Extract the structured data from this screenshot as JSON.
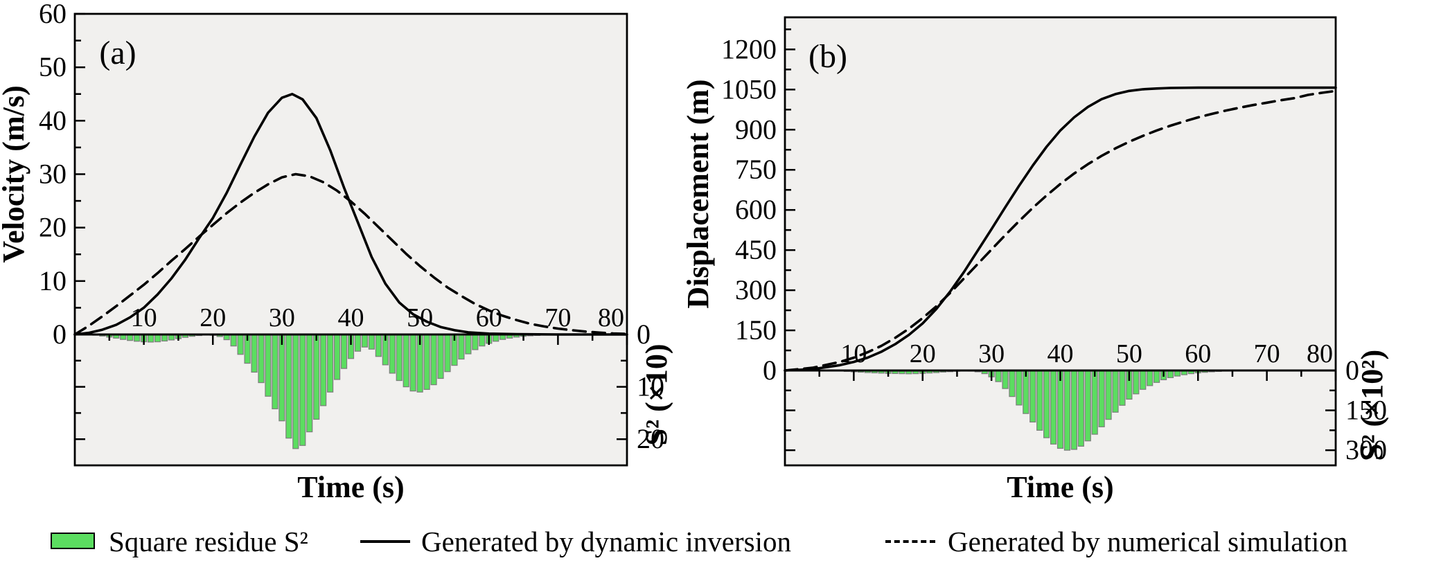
{
  "figure": {
    "plot_bg": "#f1f0ee",
    "bar_fill": "#5bdd60",
    "bar_stroke": "#7d7d7d",
    "line_color": "#000000"
  },
  "legend": {
    "items": [
      {
        "label": "Square residue S²",
        "swatch": "bar"
      },
      {
        "label": "Generated  by dynamic inversion",
        "swatch": "solid"
      },
      {
        "label": "Generated  by numerical simulation",
        "swatch": "dashed"
      }
    ]
  },
  "chart_data": [
    {
      "type": "line+bar",
      "panel_label": "(a)",
      "x_axis": {
        "label": "Time (s)",
        "lim": [
          0,
          80
        ],
        "ticks": [
          10,
          20,
          30,
          40,
          50,
          60,
          70,
          80
        ],
        "minor_step": 5
      },
      "left_axis": {
        "label": "Velocity (m/s)",
        "lim": [
          0,
          60
        ],
        "ticks": [
          0,
          10,
          20,
          30,
          40,
          50,
          60
        ],
        "minor_step": 5
      },
      "right_axis": {
        "label": "S² (×10)",
        "lim": [
          0,
          25
        ],
        "ticks": [
          0,
          10,
          20
        ],
        "minor_step": 5,
        "direction": "down"
      },
      "series": [
        {
          "name": "Generated by dynamic inversion",
          "style": "solid",
          "points": [
            [
              0,
              0
            ],
            [
              2,
              0.3
            ],
            [
              4,
              0.9
            ],
            [
              6,
              1.8
            ],
            [
              8,
              3.2
            ],
            [
              10,
              5
            ],
            [
              12,
              7.5
            ],
            [
              14,
              10.5
            ],
            [
              16,
              14
            ],
            [
              18,
              18
            ],
            [
              20,
              21.8
            ],
            [
              22,
              26.5
            ],
            [
              24,
              31.8
            ],
            [
              26,
              37
            ],
            [
              28,
              41.5
            ],
            [
              30,
              44.3
            ],
            [
              31.5,
              45
            ],
            [
              33,
              44
            ],
            [
              35,
              40.5
            ],
            [
              37,
              34.5
            ],
            [
              39,
              27.5
            ],
            [
              41,
              21
            ],
            [
              43,
              14.5
            ],
            [
              45,
              9.5
            ],
            [
              47,
              6
            ],
            [
              49,
              3.8
            ],
            [
              51,
              2.4
            ],
            [
              53,
              1.4
            ],
            [
              55,
              0.8
            ],
            [
              57,
              0.4
            ],
            [
              60,
              0.15
            ],
            [
              64,
              0.05
            ],
            [
              70,
              0
            ],
            [
              80,
              0
            ]
          ]
        },
        {
          "name": "Generated by numerical simulation",
          "style": "dashed",
          "points": [
            [
              0,
              0
            ],
            [
              2,
              1.6
            ],
            [
              4,
              3.4
            ],
            [
              6,
              5.3
            ],
            [
              8,
              7.3
            ],
            [
              10,
              9.3
            ],
            [
              12,
              11.5
            ],
            [
              14,
              13.8
            ],
            [
              16,
              16
            ],
            [
              18,
              18.3
            ],
            [
              20,
              20.5
            ],
            [
              22,
              22.7
            ],
            [
              24,
              24.7
            ],
            [
              26,
              26.5
            ],
            [
              28,
              28.1
            ],
            [
              30,
              29.4
            ],
            [
              32,
              30
            ],
            [
              34,
              29.6
            ],
            [
              36,
              28.5
            ],
            [
              38,
              26.9
            ],
            [
              40,
              24.9
            ],
            [
              42,
              22.6
            ],
            [
              44,
              20.1
            ],
            [
              46,
              17.6
            ],
            [
              48,
              15.1
            ],
            [
              50,
              12.8
            ],
            [
              52,
              10.7
            ],
            [
              54,
              8.8
            ],
            [
              56,
              7.2
            ],
            [
              58,
              5.7
            ],
            [
              60,
              4.5
            ],
            [
              62,
              3.5
            ],
            [
              64,
              2.7
            ],
            [
              66,
              2
            ],
            [
              68,
              1.5
            ],
            [
              70,
              1.1
            ],
            [
              72,
              0.8
            ],
            [
              74,
              0.55
            ],
            [
              76,
              0.35
            ],
            [
              78,
              0.2
            ],
            [
              80,
              0.1
            ]
          ]
        }
      ],
      "bars": {
        "name": "Square residue S²",
        "axis": "right",
        "t_start": 1,
        "values": [
          0,
          0.05,
          0.15,
          0.3,
          0.5,
          0.7,
          0.95,
          1.15,
          1.3,
          1.4,
          1.45,
          1.4,
          1.25,
          1.05,
          0.8,
          0.55,
          0.35,
          0.2,
          0.1,
          0.15,
          0.4,
          1.0,
          2.2,
          3.8,
          5.5,
          7.2,
          9.2,
          11.8,
          14.2,
          16.5,
          19.8,
          21.8,
          21.2,
          18.6,
          16.2,
          13.6,
          11.0,
          8.6,
          6.5,
          4.6,
          3.2,
          2.4,
          2.8,
          4.2,
          5.8,
          7.4,
          8.8,
          10.0,
          10.8,
          11.0,
          10.5,
          9.6,
          8.4,
          7.1,
          5.9,
          4.7,
          3.7,
          2.9,
          2.2,
          1.7,
          1.3,
          0.95,
          0.7,
          0.5,
          0.35,
          0.25,
          0.18,
          0.12,
          0.08,
          0.05,
          0,
          0,
          0,
          0,
          0,
          0,
          0,
          0,
          0,
          0
        ]
      }
    },
    {
      "type": "line+bar",
      "panel_label": "(b)",
      "x_axis": {
        "label": "Time (s)",
        "lim": [
          0,
          80
        ],
        "ticks": [
          10,
          20,
          30,
          40,
          50,
          60,
          70,
          80
        ],
        "minor_step": 5
      },
      "left_axis": {
        "label": "Displacement (m)",
        "lim": [
          0,
          1320
        ],
        "ticks": [
          0,
          150,
          300,
          450,
          600,
          750,
          900,
          1050,
          1200
        ],
        "minor_step": 75
      },
      "right_axis": {
        "label": "S² (×10²)",
        "lim": [
          0,
          357
        ],
        "ticks": [
          0,
          150,
          300
        ],
        "minor_step": 75,
        "direction": "down"
      },
      "series": [
        {
          "name": "Generated by dynamic inversion",
          "style": "solid",
          "points": [
            [
              0,
              0
            ],
            [
              4,
              5
            ],
            [
              8,
              20
            ],
            [
              10,
              32
            ],
            [
              12,
              48
            ],
            [
              14,
              70
            ],
            [
              16,
              98
            ],
            [
              18,
              133
            ],
            [
              20,
              176
            ],
            [
              22,
              230
            ],
            [
              24,
              295
            ],
            [
              26,
              368
            ],
            [
              28,
              448
            ],
            [
              30,
              528
            ],
            [
              32,
              610
            ],
            [
              34,
              690
            ],
            [
              36,
              766
            ],
            [
              38,
              836
            ],
            [
              40,
              897
            ],
            [
              42,
              946
            ],
            [
              44,
              985
            ],
            [
              46,
              1014
            ],
            [
              48,
              1033
            ],
            [
              50,
              1045
            ],
            [
              52,
              1051
            ],
            [
              54,
              1054
            ],
            [
              56,
              1056
            ],
            [
              60,
              1057
            ],
            [
              70,
              1057
            ],
            [
              80,
              1057
            ]
          ]
        },
        {
          "name": "Generated by numerical simulation",
          "style": "dashed",
          "points": [
            [
              0,
              0
            ],
            [
              4,
              10
            ],
            [
              8,
              32
            ],
            [
              10,
              48
            ],
            [
              12,
              68
            ],
            [
              14,
              92
            ],
            [
              16,
              122
            ],
            [
              18,
              156
            ],
            [
              20,
              196
            ],
            [
              22,
              240
            ],
            [
              24,
              290
            ],
            [
              26,
              344
            ],
            [
              28,
              398
            ],
            [
              30,
              452
            ],
            [
              32,
              506
            ],
            [
              34,
              558
            ],
            [
              36,
              608
            ],
            [
              38,
              654
            ],
            [
              40,
              697
            ],
            [
              42,
              736
            ],
            [
              44,
              771
            ],
            [
              46,
              802
            ],
            [
              48,
              830
            ],
            [
              50,
              855
            ],
            [
              52,
              877
            ],
            [
              54,
              897
            ],
            [
              56,
              915
            ],
            [
              58,
              931
            ],
            [
              60,
              946
            ],
            [
              62,
              959
            ],
            [
              64,
              971
            ],
            [
              66,
              982
            ],
            [
              68,
              992
            ],
            [
              70,
              1001
            ],
            [
              72,
              1010
            ],
            [
              74,
              1018
            ],
            [
              76,
              1030
            ],
            [
              78,
              1038
            ],
            [
              80,
              1045
            ]
          ]
        }
      ],
      "bars": {
        "name": "Square residue S²",
        "axis": "right",
        "t_start": 1,
        "values": [
          0,
          0,
          0,
          0,
          0,
          0,
          1,
          2,
          3.5,
          5,
          6.5,
          8,
          9,
          10,
          11,
          11.5,
          12,
          12.5,
          12,
          11,
          9.5,
          8,
          6,
          4.5,
          3,
          2,
          2.5,
          5,
          12,
          24,
          42,
          68,
          98,
          130,
          162,
          194,
          225,
          253,
          277,
          293,
          300,
          297,
          285,
          265,
          240,
          212,
          184,
          157,
          131,
          108,
          88,
          71,
          57,
          45,
          35,
          27,
          21,
          16,
          12,
          9,
          7,
          5,
          3.5,
          2.5,
          2,
          1.5,
          1,
          0.7,
          0.4,
          0.2,
          0,
          0,
          0,
          0,
          0,
          0,
          0,
          0,
          0,
          0
        ]
      }
    }
  ]
}
